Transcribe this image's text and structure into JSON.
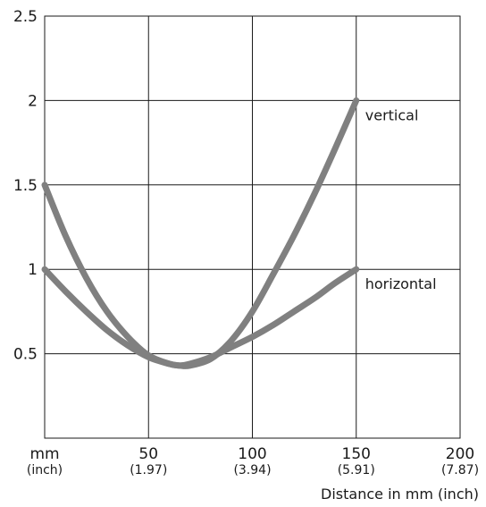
{
  "chart_data": {
    "type": "line",
    "x_unit_label": "mm",
    "x_unit_sub_label": "(inch)",
    "xlabel": "Distance in mm (inch)",
    "ylabel": "",
    "xlim": [
      0,
      200
    ],
    "ylim": [
      0,
      2.5
    ],
    "grid": true,
    "x_ticks": [
      {
        "value": 50,
        "label": "50",
        "sub": "(1.97)"
      },
      {
        "value": 100,
        "label": "100",
        "sub": "(3.94)"
      },
      {
        "value": 150,
        "label": "150",
        "sub": "(5.91)"
      },
      {
        "value": 200,
        "label": "200",
        "sub": "(7.87)"
      }
    ],
    "y_ticks": [
      {
        "value": 0.5,
        "label": "0.5"
      },
      {
        "value": 1,
        "label": "1"
      },
      {
        "value": 1.5,
        "label": "1.5"
      },
      {
        "value": 2,
        "label": "2"
      },
      {
        "value": 2.5,
        "label": "2.5"
      }
    ],
    "series": [
      {
        "name": "vertical",
        "color": "#808080",
        "x": [
          0,
          10,
          20,
          30,
          40,
          50,
          60,
          65,
          70,
          80,
          90,
          100,
          110,
          120,
          130,
          140,
          150
        ],
        "y": [
          1.5,
          1.2,
          0.95,
          0.75,
          0.6,
          0.49,
          0.44,
          0.43,
          0.43,
          0.47,
          0.58,
          0.75,
          0.97,
          1.2,
          1.45,
          1.72,
          2.0
        ]
      },
      {
        "name": "horizontal",
        "color": "#808080",
        "x": [
          0,
          10,
          20,
          30,
          40,
          50,
          60,
          65,
          70,
          80,
          90,
          100,
          110,
          120,
          130,
          140,
          150
        ],
        "y": [
          1.0,
          0.87,
          0.75,
          0.64,
          0.55,
          0.48,
          0.44,
          0.43,
          0.44,
          0.48,
          0.54,
          0.6,
          0.67,
          0.75,
          0.83,
          0.92,
          1.0
        ]
      }
    ]
  }
}
